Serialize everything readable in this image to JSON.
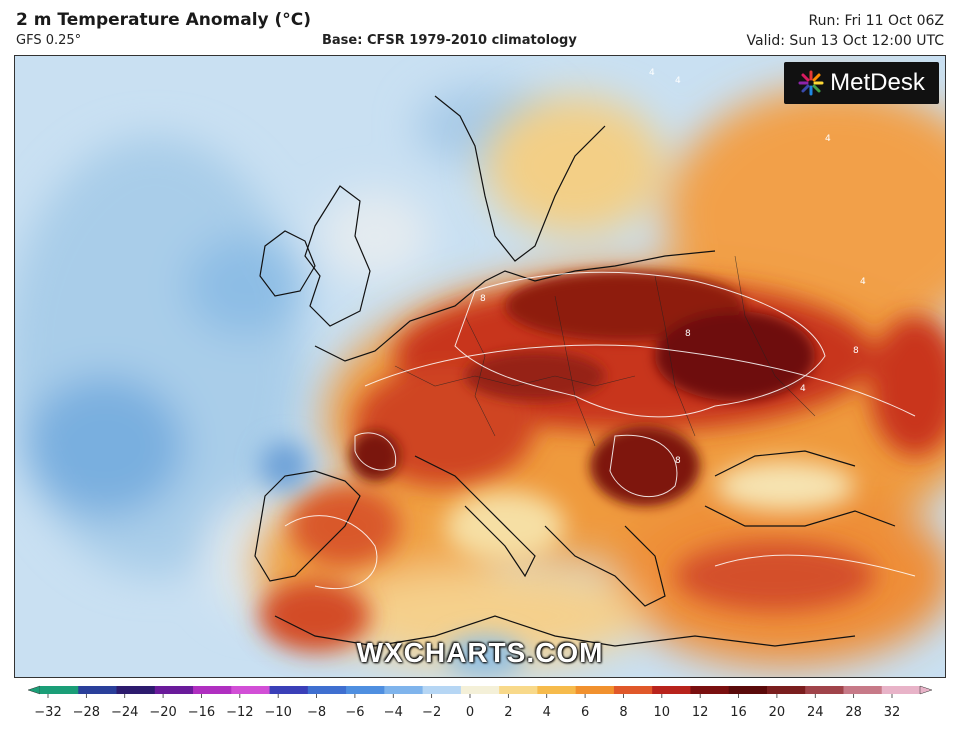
{
  "header": {
    "title": "2 m Temperature Anomaly (°C)",
    "model": "GFS 0.25°",
    "base": "Base: CFSR 1979-2010 climatology",
    "run": "Run: Fri 11 Oct 06Z",
    "valid": "Valid: Sun 13 Oct 12:00 UTC"
  },
  "map": {
    "logo_text": "MetDesk",
    "logo_icon": "starburst-icon",
    "watermark": "WXCHARTS.COM",
    "contour_labels": [
      "4",
      "4",
      "8",
      "8",
      "8",
      "8",
      "4",
      "4",
      "4"
    ]
  },
  "colorbar": {
    "ticks": [
      "−32",
      "−28",
      "−24",
      "−20",
      "−16",
      "−12",
      "−10",
      "−8",
      "−6",
      "−4",
      "−2",
      "0",
      "2",
      "4",
      "6",
      "8",
      "10",
      "12",
      "16",
      "20",
      "24",
      "28",
      "32"
    ],
    "colors": [
      "#1b9e77",
      "#2a3f9a",
      "#2d1b6e",
      "#6a1b9a",
      "#b02fc0",
      "#d24fd6",
      "#3a3fb8",
      "#3f6fd0",
      "#4f8fe0",
      "#7fb4ec",
      "#b6d6f4",
      "#f4f0d8",
      "#f8d98a",
      "#f6bb4c",
      "#f1912e",
      "#e0582a",
      "#b8231c",
      "#7a0f0f",
      "#5a0a0a",
      "#7a1e1e",
      "#a0444a",
      "#c77a88",
      "#e8b3c8"
    ]
  }
}
